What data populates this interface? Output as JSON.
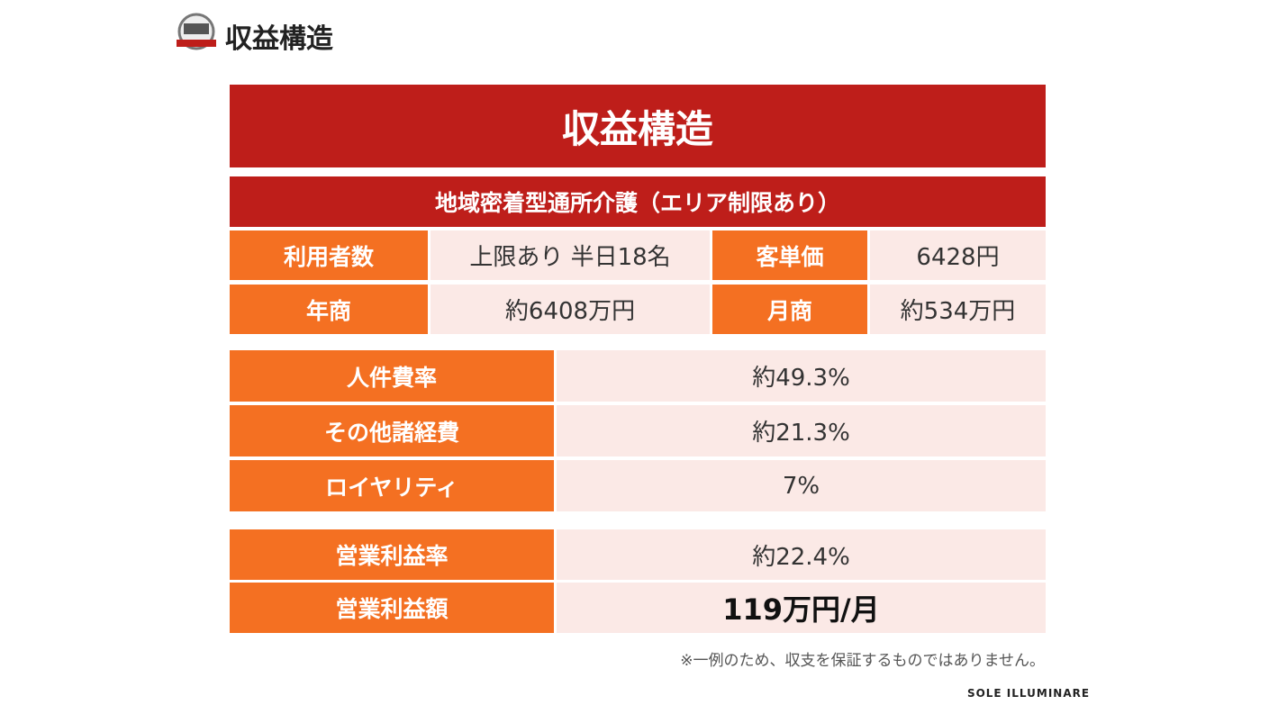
{
  "header": {
    "title": "収益構造"
  },
  "banner": {
    "title": "収益構造",
    "subtitle": "地域密着型通所介護（エリア制限あり）"
  },
  "summary_table": {
    "rows": [
      [
        "利用者数",
        "上限あり 半日18名",
        "客単価",
        "6428円"
      ],
      [
        "年商",
        "約6408万円",
        "月商",
        "約534万円"
      ]
    ]
  },
  "cost_table": {
    "rows": [
      [
        "人件費率",
        "約49.3%"
      ],
      [
        "その他諸経費",
        "約21.3%"
      ],
      [
        "ロイヤリティ",
        "7%"
      ]
    ]
  },
  "profit_table": {
    "rows": [
      [
        "営業利益率",
        "約22.4%"
      ],
      [
        "営業利益額",
        "119万円/月"
      ]
    ]
  },
  "note": "※一例のため、収支を保証するものではありません。",
  "footer": {
    "brand": "SOLE ILLUMINARE"
  }
}
